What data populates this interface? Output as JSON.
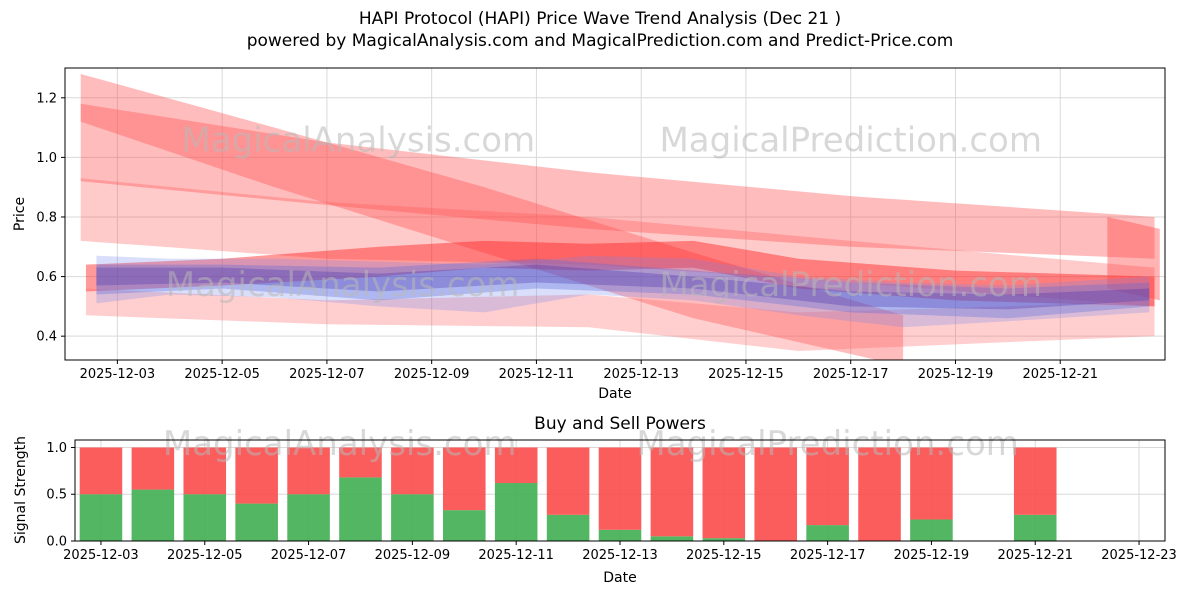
{
  "figure": {
    "title_line1": "HAPI Protocol (HAPI) Price Wave Trend Analysis (Dec 21 )",
    "title_line2": "powered by MagicalAnalysis.com and MagicalPrediction.com and Predict-Price.com"
  },
  "colors": {
    "grid": "#d9d9d9",
    "spine": "#000000",
    "watermark": "#b9b9b9",
    "buy_green": "#3fae51",
    "sell_red": "#fb4b4b",
    "wave_red": "#ff5050",
    "wave_blue": "#5566dd"
  },
  "chart_data": [
    {
      "type": "area",
      "name": "price-wave-trend-chart",
      "ylabel": "Price",
      "xlabel": "Date",
      "ylim": [
        0.32,
        1.3
      ],
      "yticks": [
        "0.4",
        "0.6",
        "0.8",
        "1.0",
        "1.2"
      ],
      "ytick_values": [
        0.4,
        0.6,
        0.8,
        1.0,
        1.2
      ],
      "xlim_days": [
        0,
        21
      ],
      "grid": true,
      "xticks": [
        {
          "label": "2025-12-03",
          "day": 1
        },
        {
          "label": "2025-12-05",
          "day": 3
        },
        {
          "label": "2025-12-07",
          "day": 5
        },
        {
          "label": "2025-12-09",
          "day": 7
        },
        {
          "label": "2025-12-11",
          "day": 9
        },
        {
          "label": "2025-12-13",
          "day": 11
        },
        {
          "label": "2025-12-15",
          "day": 13
        },
        {
          "label": "2025-12-17",
          "day": 15
        },
        {
          "label": "2025-12-19",
          "day": 17
        },
        {
          "label": "2025-12-21",
          "day": 19
        }
      ],
      "watermarks": [
        {
          "text": "MagicalAnalysis.com",
          "day": 5.6,
          "value": 1.02
        },
        {
          "text": "MagicalPrediction.com",
          "day": 15.0,
          "value": 1.02
        },
        {
          "text": "MagicalAnalysis.com",
          "day": 5.3,
          "value": 0.535
        },
        {
          "text": "MagicalPrediction.com",
          "day": 15.0,
          "value": 0.535
        }
      ],
      "bands": [
        {
          "name": "steep-red-wedge",
          "color": "#ff5050",
          "opacity": 0.38,
          "days": [
            0.3,
            4,
            8,
            12,
            16
          ],
          "upper": [
            1.28,
            1.1,
            0.9,
            0.68,
            0.47
          ],
          "lower": [
            1.12,
            0.9,
            0.68,
            0.46,
            0.3
          ]
        },
        {
          "name": "shallow-red-band",
          "color": "#ff5050",
          "opacity": 0.38,
          "days": [
            0.3,
            5,
            10,
            15,
            20.8
          ],
          "upper": [
            1.18,
            1.05,
            0.95,
            0.87,
            0.8
          ],
          "lower": [
            0.92,
            0.84,
            0.76,
            0.7,
            0.66
          ]
        },
        {
          "name": "mid-red-band",
          "color": "#ff5050",
          "opacity": 0.3,
          "days": [
            0.3,
            5,
            10,
            15,
            20.8
          ],
          "upper": [
            0.93,
            0.85,
            0.8,
            0.72,
            0.63
          ],
          "lower": [
            0.72,
            0.66,
            0.64,
            0.58,
            0.5
          ]
        },
        {
          "name": "core-red-band",
          "color": "#ff2020",
          "opacity": 0.45,
          "days": [
            0.4,
            3,
            6,
            8,
            10,
            12,
            14,
            17,
            20.8
          ],
          "upper": [
            0.64,
            0.66,
            0.7,
            0.72,
            0.71,
            0.72,
            0.66,
            0.62,
            0.6
          ],
          "lower": [
            0.55,
            0.57,
            0.6,
            0.63,
            0.62,
            0.63,
            0.56,
            0.52,
            0.5
          ]
        },
        {
          "name": "lower-pink-band",
          "color": "#ff6060",
          "opacity": 0.3,
          "days": [
            0.4,
            5,
            10,
            14,
            18,
            20.8
          ],
          "upper": [
            0.56,
            0.52,
            0.54,
            0.48,
            0.5,
            0.52
          ],
          "lower": [
            0.47,
            0.44,
            0.43,
            0.35,
            0.38,
            0.4
          ]
        },
        {
          "name": "right-red-patch",
          "color": "#ff4040",
          "opacity": 0.4,
          "days": [
            19.9,
            20.9
          ],
          "upper": [
            0.8,
            0.76
          ],
          "lower": [
            0.56,
            0.52
          ]
        },
        {
          "name": "light-blue-band",
          "color": "#7788ee",
          "opacity": 0.28,
          "days": [
            0.6,
            2,
            4,
            6,
            8,
            10,
            12,
            14,
            16,
            18,
            20.7
          ],
          "upper": [
            0.67,
            0.66,
            0.66,
            0.65,
            0.64,
            0.67,
            0.66,
            0.6,
            0.58,
            0.57,
            0.6
          ],
          "lower": [
            0.51,
            0.54,
            0.53,
            0.5,
            0.48,
            0.54,
            0.52,
            0.47,
            0.43,
            0.45,
            0.48
          ]
        },
        {
          "name": "mid-blue-band",
          "color": "#5566dd",
          "opacity": 0.32,
          "days": [
            0.6,
            3,
            6,
            9,
            12,
            15,
            18,
            20.7
          ],
          "upper": [
            0.64,
            0.64,
            0.63,
            0.66,
            0.62,
            0.58,
            0.56,
            0.58
          ],
          "lower": [
            0.54,
            0.56,
            0.52,
            0.56,
            0.54,
            0.48,
            0.46,
            0.5
          ]
        },
        {
          "name": "purple-core-band",
          "color": "#4433aa",
          "opacity": 0.32,
          "days": [
            0.6,
            3,
            6,
            9,
            12,
            15,
            18,
            20.7
          ],
          "upper": [
            0.63,
            0.63,
            0.61,
            0.64,
            0.6,
            0.55,
            0.54,
            0.56
          ],
          "lower": [
            0.57,
            0.58,
            0.55,
            0.58,
            0.56,
            0.5,
            0.49,
            0.52
          ]
        }
      ]
    },
    {
      "type": "bar",
      "name": "buy-sell-powers-chart",
      "title": "Buy and Sell Powers",
      "ylabel": "Signal Strength",
      "xlabel": "Date",
      "ylim": [
        0,
        1.08
      ],
      "yticks": [
        "0.0",
        "0.5",
        "1.0"
      ],
      "ytick_values": [
        0,
        0.5,
        1.0
      ],
      "xlim_days": [
        0.5,
        21.5
      ],
      "grid": true,
      "xticks": [
        {
          "label": "2025-12-03",
          "day": 1
        },
        {
          "label": "2025-12-05",
          "day": 3
        },
        {
          "label": "2025-12-07",
          "day": 5
        },
        {
          "label": "2025-12-09",
          "day": 7
        },
        {
          "label": "2025-12-11",
          "day": 9
        },
        {
          "label": "2025-12-13",
          "day": 11
        },
        {
          "label": "2025-12-15",
          "day": 13
        },
        {
          "label": "2025-12-17",
          "day": 15
        },
        {
          "label": "2025-12-19",
          "day": 17
        },
        {
          "label": "2025-12-21",
          "day": 19
        },
        {
          "label": "2025-12-23",
          "day": 21
        }
      ],
      "categories": [
        "2025-12-03",
        "2025-12-04",
        "2025-12-05",
        "2025-12-06",
        "2025-12-07",
        "2025-12-08",
        "2025-12-09",
        "2025-12-10",
        "2025-12-11",
        "2025-12-12",
        "2025-12-13",
        "2025-12-14",
        "2025-12-15",
        "2025-12-16",
        "2025-12-17",
        "2025-12-18",
        "2025-12-19",
        "2025-12-20",
        "2025-12-21"
      ],
      "bar_days": [
        1,
        2,
        3,
        4,
        5,
        6,
        7,
        8,
        9,
        10,
        11,
        12,
        13,
        14,
        15,
        16,
        17,
        18,
        19
      ],
      "series": [
        {
          "name": "Buy",
          "color": "#3fae51",
          "opacity": 0.9,
          "values": [
            0.5,
            0.55,
            0.5,
            0.4,
            0.5,
            0.68,
            0.5,
            0.33,
            0.62,
            0.28,
            0.12,
            0.05,
            0.03,
            0.0,
            0.17,
            0.0,
            0.23,
            null,
            0.28
          ]
        },
        {
          "name": "Sell",
          "color": "#fb4b4b",
          "opacity": 0.9,
          "values": [
            0.5,
            0.45,
            0.5,
            0.6,
            0.5,
            0.32,
            0.5,
            0.67,
            0.38,
            0.72,
            0.88,
            0.95,
            0.97,
            1.0,
            0.83,
            1.0,
            0.77,
            null,
            0.72
          ]
        }
      ],
      "watermarks": [
        {
          "text": "MagicalAnalysis.com",
          "day": 5.6,
          "value": 0.92
        },
        {
          "text": "MagicalPrediction.com",
          "day": 15.0,
          "value": 0.92
        }
      ]
    }
  ]
}
